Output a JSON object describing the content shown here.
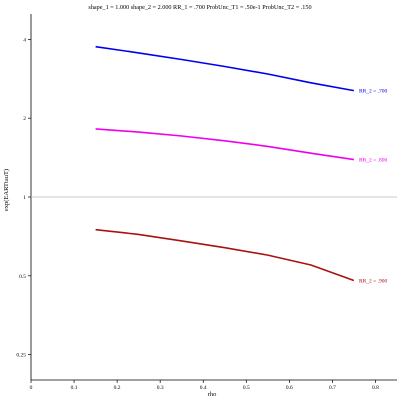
{
  "chart_data": {
    "type": "line",
    "title": "shape_1 = 1.000  shape_2 = 2.000  RR_1 = .700  ProbUnc_T1 = .50e-1  ProbUnc_T2 = .150",
    "xlabel": "rho",
    "ylabel": "exp(EARTtauT)",
    "xlim": [
      0,
      0.85
    ],
    "ylim": [
      0.2,
      5
    ],
    "yscale": "log",
    "x_ticks": [
      0,
      0.1,
      0.2,
      0.3,
      0.4,
      0.5,
      0.6,
      0.7,
      0.8
    ],
    "x_tick_labels": [
      "0",
      "0.1",
      "0.2",
      "0.3",
      "0.4",
      "0.5",
      "0.6",
      "0.7",
      "0.8"
    ],
    "y_ticks": [
      0.25,
      0.5,
      1,
      2,
      4
    ],
    "y_tick_labels": [
      "0.25",
      "0.5",
      "1",
      "2",
      "4"
    ],
    "reference_line_y": 1,
    "grid": false,
    "x": [
      0.15,
      0.25,
      0.35,
      0.45,
      0.55,
      0.65,
      0.75
    ],
    "series": [
      {
        "name": "RR_2 = .700",
        "color": "#0000ee",
        "values": [
          3.75,
          3.55,
          3.35,
          3.15,
          2.95,
          2.73,
          2.55
        ]
      },
      {
        "name": "RR_2 = .800",
        "color": "#ee00ee",
        "values": [
          1.82,
          1.77,
          1.71,
          1.64,
          1.56,
          1.47,
          1.39
        ]
      },
      {
        "name": "RR_2 = .900",
        "color": "#aa1111",
        "values": [
          0.75,
          0.72,
          0.68,
          0.64,
          0.6,
          0.55,
          0.48
        ]
      }
    ]
  }
}
